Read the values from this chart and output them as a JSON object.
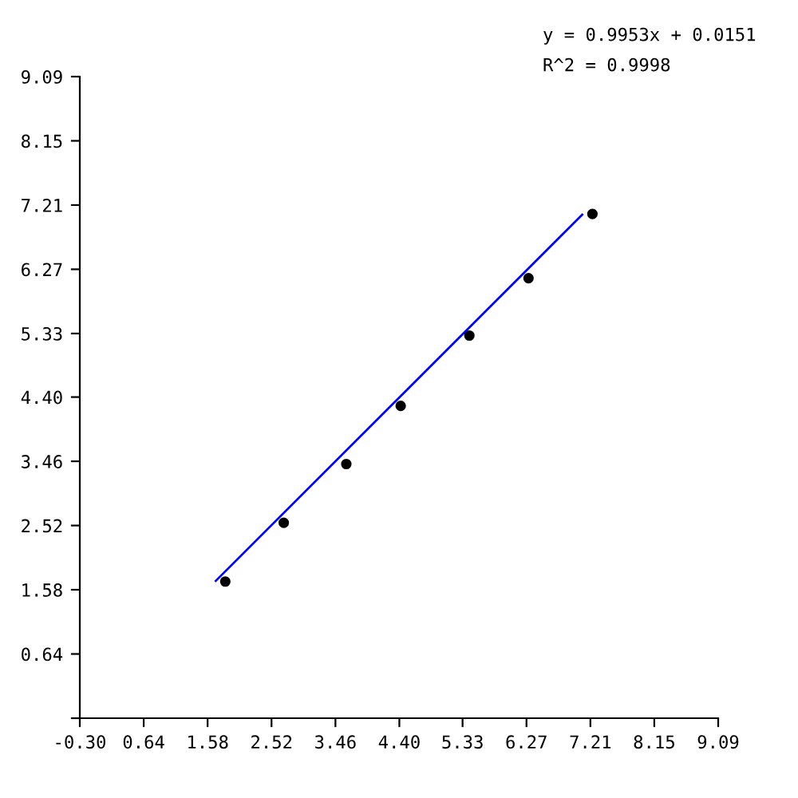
{
  "chart_data": {
    "type": "scatter",
    "annotations": [
      "y = 0.9953x + 0.0151",
      "R^2 = 0.9998"
    ],
    "series": [
      {
        "color": "#000000",
        "marker": "circle",
        "x": [
          1.84,
          2.7,
          3.62,
          4.42,
          5.43,
          6.3,
          7.24
        ],
        "values": [
          1.7,
          2.56,
          3.42,
          4.27,
          5.3,
          6.14,
          7.08
        ]
      },
      {
        "type": "line",
        "color": "#0000ff",
        "line_style": "solid",
        "marker": "none",
        "x": [
          1.7,
          7.09
        ],
        "values": [
          1.71,
          7.07
        ]
      }
    ],
    "xlim": [
      -0.3,
      9.09
    ],
    "ylim": [
      -0.3,
      9.09
    ],
    "xticks": [
      {
        "value": -0.3,
        "label": "-0.30"
      },
      0.64,
      1.58,
      2.52,
      3.46,
      {
        "value": 4.4,
        "label": "4.40"
      },
      5.33,
      6.27,
      7.21,
      8.15,
      9.09
    ],
    "yticks": [
      {
        "value": -0.3,
        "label": null
      },
      0.64,
      1.58,
      2.52,
      3.46,
      {
        "value": 4.4,
        "label": "4.40"
      },
      5.33,
      6.27,
      7.21,
      8.15,
      9.09
    ],
    "grid": false,
    "legend": false
  }
}
